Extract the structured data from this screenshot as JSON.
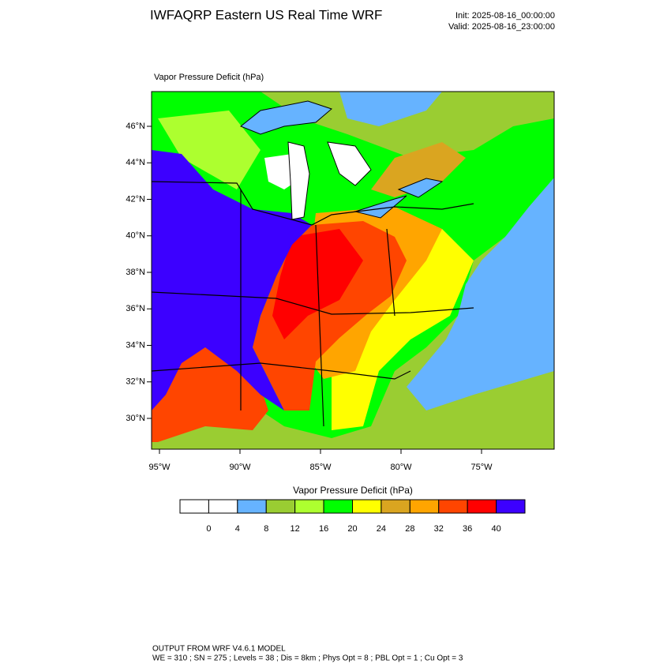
{
  "header": {
    "title": "IWFAQRP Eastern US Real Time WRF",
    "init": "Init: 2025-08-16_00:00:00",
    "valid": "Valid: 2025-08-16_23:00:00"
  },
  "map": {
    "field_label": "Vapor Pressure Deficit   (hPa)",
    "lat_labels": [
      "46°N",
      "44°N",
      "42°N",
      "40°N",
      "38°N",
      "36°N",
      "34°N",
      "32°N",
      "30°N"
    ],
    "lon_labels": [
      "95°W",
      "90°W",
      "85°W",
      "80°W",
      "75°W"
    ]
  },
  "colorbar": {
    "title": "Vapor Pressure Deficit  (hPa)",
    "levels": [
      0,
      4,
      8,
      12,
      16,
      20,
      24,
      28,
      32,
      36,
      40
    ],
    "colors": [
      "#ffffff",
      "#ffffff",
      "#66b3ff",
      "#9acd32",
      "#adff2f",
      "#00ff00",
      "#ffff00",
      "#daa520",
      "#ffa500",
      "#ff4500",
      "#ff0000",
      "#3c00ff"
    ]
  },
  "footer": {
    "line1": "OUTPUT FROM WRF V4.6.1 MODEL",
    "line2": "WE = 310 ; SN = 275 ; Levels = 38 ; Dis = 8km ; Phys Opt = 8 ; PBL Opt = 1 ; Cu Opt = 3"
  }
}
